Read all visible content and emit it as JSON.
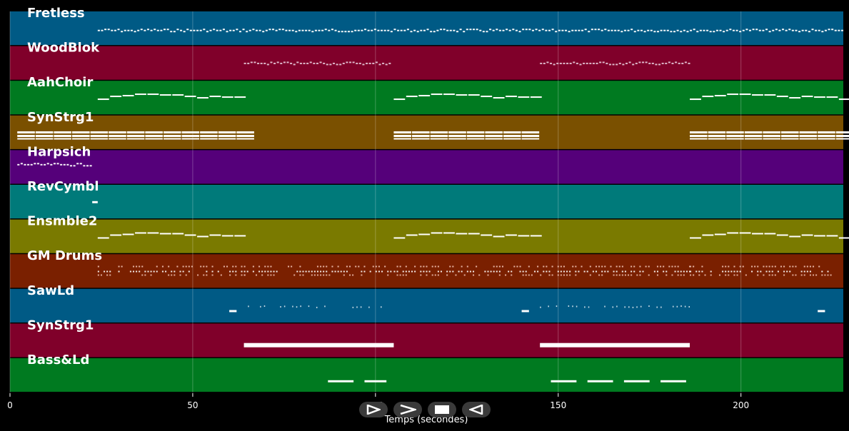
{
  "chart_data": {
    "type": "piano-roll",
    "title": "",
    "xlabel": "Temps (secondes)",
    "ylabel": "",
    "xlim": [
      0,
      228
    ],
    "x_ticks": [
      0,
      50,
      100,
      150,
      200
    ],
    "tracks": [
      {
        "name": "Fretless",
        "color": "#005a85",
        "pattern": "line",
        "segments": [
          [
            24,
            228
          ]
        ],
        "pitch": 0.55,
        "thickness": 2
      },
      {
        "name": "WoodBlok",
        "color": "#80002a",
        "pattern": "dots-faint",
        "segments": [
          [
            64,
            104
          ],
          [
            145,
            186
          ]
        ],
        "pitch": 0.5,
        "thickness": 2
      },
      {
        "name": "AahChoir",
        "color": "#007a20",
        "pattern": "melody",
        "segments": [
          [
            24,
            64
          ],
          [
            105,
            145
          ],
          [
            186,
            227
          ]
        ],
        "pitch": 0.45,
        "thickness": 2
      },
      {
        "name": "SynStrg1",
        "color": "#7a5000",
        "pattern": "chords",
        "segments": [
          [
            2,
            64
          ],
          [
            105,
            145
          ],
          [
            186,
            227
          ]
        ],
        "pitch": 0.55,
        "thickness": 8
      },
      {
        "name": "Harpsich",
        "color": "#55007a",
        "pattern": "line",
        "segments": [
          [
            2,
            22
          ]
        ],
        "pitch": 0.42,
        "thickness": 2
      },
      {
        "name": "RevCymbl",
        "color": "#007a7a",
        "pattern": "single",
        "segments": [
          [
            22.5,
            24
          ]
        ],
        "pitch": 0.5,
        "thickness": 2
      },
      {
        "name": "Ensmble2",
        "color": "#7a7a00",
        "pattern": "melody",
        "segments": [
          [
            24,
            64
          ],
          [
            105,
            145
          ],
          [
            186,
            227
          ]
        ],
        "pitch": 0.45,
        "thickness": 2
      },
      {
        "name": "GM Drums",
        "color": "#7a2000",
        "pattern": "drums",
        "segments": [
          [
            24,
            64
          ],
          [
            64,
            104
          ],
          [
            105,
            145
          ],
          [
            145,
            186
          ],
          [
            186,
            225
          ]
        ],
        "pitch": 0.5,
        "thickness": 2
      },
      {
        "name": "SawLd",
        "color": "#005a85",
        "pattern": "sparse",
        "segments": [
          [
            60,
            62
          ],
          [
            64,
            103
          ],
          [
            140,
            142
          ],
          [
            145,
            186
          ],
          [
            221,
            223
          ]
        ],
        "pitch": 0.6,
        "thickness": 2
      },
      {
        "name": "SynStrg1",
        "color": "#80002a",
        "pattern": "bar",
        "segments": [
          [
            64,
            105
          ],
          [
            145,
            186
          ]
        ],
        "pitch": 0.5,
        "thickness": 6
      },
      {
        "name": "Bass&Ld",
        "color": "#007a20",
        "pattern": "bass",
        "segments": [
          [
            87,
            94
          ],
          [
            97,
            103
          ],
          [
            148,
            155
          ],
          [
            158,
            165
          ],
          [
            168,
            175
          ],
          [
            178,
            185
          ]
        ],
        "pitch": 0.5,
        "thickness": 3
      }
    ]
  },
  "controls": [
    {
      "name": "play-button",
      "icon": "play-icon"
    },
    {
      "name": "forward-button",
      "icon": "forward-icon"
    },
    {
      "name": "stop-button",
      "icon": "stop-icon"
    },
    {
      "name": "back-button",
      "icon": "back-icon"
    }
  ]
}
